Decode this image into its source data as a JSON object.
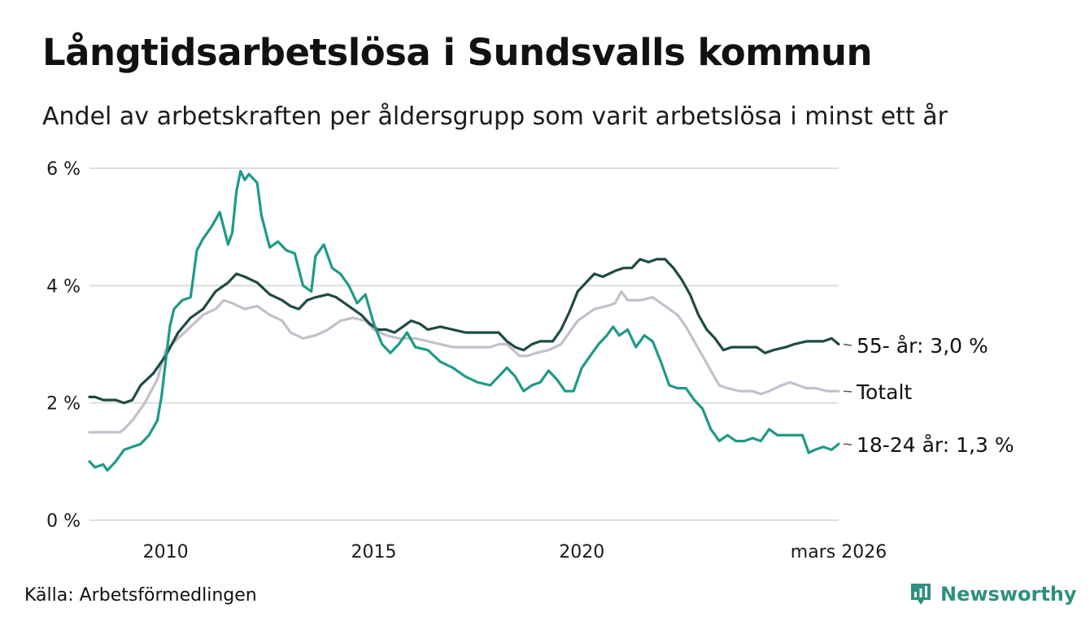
{
  "header": {
    "title": "Långtidsarbetslösa i Sundsvalls kommun",
    "subtitle": "Andel av arbetskraften per åldersgrupp som varit arbetslösa i minst ett år"
  },
  "footer": {
    "source": "Källa: Arbetsförmedlingen",
    "brand": "Newsworthy"
  },
  "colors": {
    "age55": "#1f4a44",
    "total": "#c3bfcc",
    "age1824": "#1e9a87",
    "grid": "#dcdcdc",
    "brand": "#2f8f7f"
  },
  "chart_data": {
    "type": "line",
    "title": "Långtidsarbetslösa i Sundsvalls kommun",
    "xlabel": "",
    "ylabel": "",
    "xlim": [
      2008.17,
      2026.17
    ],
    "ylim": [
      0,
      6
    ],
    "y_ticks": [
      0,
      2,
      4,
      6
    ],
    "y_tick_labels": [
      "0 %",
      "2 %",
      "4 %",
      "6 %"
    ],
    "x_ticks": [
      2010,
      2015,
      2020,
      2026.17
    ],
    "x_tick_labels": [
      "2010",
      "2015",
      "2020",
      "mars 2026"
    ],
    "grid": true,
    "series": [
      {
        "name": "Totalt",
        "end_label": "Totalt",
        "color_key": "total",
        "points": [
          [
            2008.17,
            1.5
          ],
          [
            2008.5,
            1.5
          ],
          [
            2008.9,
            1.5
          ],
          [
            2009.0,
            1.55
          ],
          [
            2009.2,
            1.7
          ],
          [
            2009.5,
            2.0
          ],
          [
            2009.8,
            2.4
          ],
          [
            2010.0,
            2.9
          ],
          [
            2010.3,
            3.1
          ],
          [
            2010.6,
            3.3
          ],
          [
            2010.9,
            3.5
          ],
          [
            2011.2,
            3.6
          ],
          [
            2011.4,
            3.75
          ],
          [
            2011.6,
            3.7
          ],
          [
            2011.9,
            3.6
          ],
          [
            2012.2,
            3.65
          ],
          [
            2012.5,
            3.5
          ],
          [
            2012.8,
            3.4
          ],
          [
            2013.0,
            3.2
          ],
          [
            2013.3,
            3.1
          ],
          [
            2013.6,
            3.15
          ],
          [
            2013.9,
            3.25
          ],
          [
            2014.2,
            3.4
          ],
          [
            2014.5,
            3.45
          ],
          [
            2014.8,
            3.4
          ],
          [
            2015.0,
            3.25
          ],
          [
            2015.3,
            3.15
          ],
          [
            2015.6,
            3.1
          ],
          [
            2016.0,
            3.1
          ],
          [
            2016.3,
            3.05
          ],
          [
            2016.6,
            3.0
          ],
          [
            2016.9,
            2.95
          ],
          [
            2017.2,
            2.95
          ],
          [
            2017.5,
            2.95
          ],
          [
            2017.8,
            2.95
          ],
          [
            2018.0,
            3.0
          ],
          [
            2018.2,
            3.0
          ],
          [
            2018.5,
            2.8
          ],
          [
            2018.7,
            2.8
          ],
          [
            2018.9,
            2.85
          ],
          [
            2019.2,
            2.9
          ],
          [
            2019.5,
            3.0
          ],
          [
            2019.7,
            3.2
          ],
          [
            2019.9,
            3.4
          ],
          [
            2020.1,
            3.5
          ],
          [
            2020.3,
            3.6
          ],
          [
            2020.6,
            3.65
          ],
          [
            2020.8,
            3.7
          ],
          [
            2020.95,
            3.9
          ],
          [
            2021.1,
            3.75
          ],
          [
            2021.4,
            3.75
          ],
          [
            2021.7,
            3.8
          ],
          [
            2022.0,
            3.65
          ],
          [
            2022.3,
            3.5
          ],
          [
            2022.5,
            3.3
          ],
          [
            2022.7,
            3.05
          ],
          [
            2022.9,
            2.8
          ],
          [
            2023.1,
            2.55
          ],
          [
            2023.3,
            2.3
          ],
          [
            2023.5,
            2.25
          ],
          [
            2023.8,
            2.2
          ],
          [
            2024.1,
            2.2
          ],
          [
            2024.3,
            2.15
          ],
          [
            2024.5,
            2.2
          ],
          [
            2024.8,
            2.3
          ],
          [
            2025.0,
            2.35
          ],
          [
            2025.2,
            2.3
          ],
          [
            2025.4,
            2.25
          ],
          [
            2025.6,
            2.25
          ],
          [
            2025.9,
            2.2
          ],
          [
            2026.17,
            2.2
          ]
        ]
      },
      {
        "name": "55- år",
        "end_label": "55- år: 3,0 %",
        "color_key": "age55",
        "points": [
          [
            2008.17,
            2.1
          ],
          [
            2008.3,
            2.1
          ],
          [
            2008.5,
            2.05
          ],
          [
            2008.8,
            2.05
          ],
          [
            2009.0,
            2.0
          ],
          [
            2009.2,
            2.05
          ],
          [
            2009.4,
            2.3
          ],
          [
            2009.7,
            2.5
          ],
          [
            2010.0,
            2.8
          ],
          [
            2010.3,
            3.2
          ],
          [
            2010.6,
            3.45
          ],
          [
            2010.9,
            3.6
          ],
          [
            2011.2,
            3.9
          ],
          [
            2011.5,
            4.05
          ],
          [
            2011.7,
            4.2
          ],
          [
            2011.9,
            4.15
          ],
          [
            2012.2,
            4.05
          ],
          [
            2012.5,
            3.85
          ],
          [
            2012.8,
            3.75
          ],
          [
            2013.0,
            3.65
          ],
          [
            2013.2,
            3.6
          ],
          [
            2013.4,
            3.75
          ],
          [
            2013.6,
            3.8
          ],
          [
            2013.9,
            3.85
          ],
          [
            2014.1,
            3.8
          ],
          [
            2014.3,
            3.7
          ],
          [
            2014.5,
            3.6
          ],
          [
            2014.7,
            3.5
          ],
          [
            2014.9,
            3.35
          ],
          [
            2015.1,
            3.25
          ],
          [
            2015.3,
            3.25
          ],
          [
            2015.5,
            3.2
          ],
          [
            2015.7,
            3.3
          ],
          [
            2015.9,
            3.4
          ],
          [
            2016.1,
            3.35
          ],
          [
            2016.3,
            3.25
          ],
          [
            2016.6,
            3.3
          ],
          [
            2016.9,
            3.25
          ],
          [
            2017.2,
            3.2
          ],
          [
            2017.5,
            3.2
          ],
          [
            2017.8,
            3.2
          ],
          [
            2018.0,
            3.2
          ],
          [
            2018.2,
            3.05
          ],
          [
            2018.4,
            2.95
          ],
          [
            2018.6,
            2.9
          ],
          [
            2018.8,
            3.0
          ],
          [
            2019.0,
            3.05
          ],
          [
            2019.3,
            3.05
          ],
          [
            2019.5,
            3.25
          ],
          [
            2019.7,
            3.55
          ],
          [
            2019.9,
            3.9
          ],
          [
            2020.1,
            4.05
          ],
          [
            2020.3,
            4.2
          ],
          [
            2020.5,
            4.15
          ],
          [
            2020.8,
            4.25
          ],
          [
            2021.0,
            4.3
          ],
          [
            2021.2,
            4.3
          ],
          [
            2021.4,
            4.45
          ],
          [
            2021.6,
            4.4
          ],
          [
            2021.8,
            4.45
          ],
          [
            2022.0,
            4.45
          ],
          [
            2022.2,
            4.3
          ],
          [
            2022.4,
            4.1
          ],
          [
            2022.6,
            3.85
          ],
          [
            2022.8,
            3.5
          ],
          [
            2023.0,
            3.25
          ],
          [
            2023.2,
            3.1
          ],
          [
            2023.4,
            2.9
          ],
          [
            2023.6,
            2.95
          ],
          [
            2023.9,
            2.95
          ],
          [
            2024.2,
            2.95
          ],
          [
            2024.4,
            2.85
          ],
          [
            2024.6,
            2.9
          ],
          [
            2024.9,
            2.95
          ],
          [
            2025.1,
            3.0
          ],
          [
            2025.4,
            3.05
          ],
          [
            2025.6,
            3.05
          ],
          [
            2025.8,
            3.05
          ],
          [
            2026.0,
            3.1
          ],
          [
            2026.17,
            3.0
          ]
        ]
      },
      {
        "name": "18-24 år",
        "end_label": "18-24 år: 1,3 %",
        "color_key": "age1824",
        "points": [
          [
            2008.17,
            1.0
          ],
          [
            2008.3,
            0.9
          ],
          [
            2008.5,
            0.95
          ],
          [
            2008.6,
            0.85
          ],
          [
            2008.8,
            1.0
          ],
          [
            2009.0,
            1.2
          ],
          [
            2009.2,
            1.25
          ],
          [
            2009.4,
            1.3
          ],
          [
            2009.6,
            1.45
          ],
          [
            2009.8,
            1.7
          ],
          [
            2009.9,
            2.1
          ],
          [
            2010.0,
            2.7
          ],
          [
            2010.1,
            3.3
          ],
          [
            2010.2,
            3.6
          ],
          [
            2010.4,
            3.75
          ],
          [
            2010.6,
            3.8
          ],
          [
            2010.75,
            4.6
          ],
          [
            2010.9,
            4.8
          ],
          [
            2011.1,
            5.0
          ],
          [
            2011.3,
            5.25
          ],
          [
            2011.5,
            4.7
          ],
          [
            2011.6,
            4.9
          ],
          [
            2011.7,
            5.6
          ],
          [
            2011.8,
            5.95
          ],
          [
            2011.9,
            5.8
          ],
          [
            2012.0,
            5.9
          ],
          [
            2012.2,
            5.75
          ],
          [
            2012.3,
            5.2
          ],
          [
            2012.5,
            4.65
          ],
          [
            2012.7,
            4.75
          ],
          [
            2012.9,
            4.6
          ],
          [
            2013.1,
            4.55
          ],
          [
            2013.3,
            4.0
          ],
          [
            2013.5,
            3.9
          ],
          [
            2013.6,
            4.5
          ],
          [
            2013.8,
            4.7
          ],
          [
            2014.0,
            4.3
          ],
          [
            2014.2,
            4.2
          ],
          [
            2014.4,
            4.0
          ],
          [
            2014.6,
            3.7
          ],
          [
            2014.8,
            3.85
          ],
          [
            2015.0,
            3.35
          ],
          [
            2015.2,
            3.0
          ],
          [
            2015.4,
            2.85
          ],
          [
            2015.6,
            3.0
          ],
          [
            2015.8,
            3.2
          ],
          [
            2016.0,
            2.95
          ],
          [
            2016.3,
            2.9
          ],
          [
            2016.6,
            2.7
          ],
          [
            2016.9,
            2.6
          ],
          [
            2017.2,
            2.45
          ],
          [
            2017.5,
            2.35
          ],
          [
            2017.8,
            2.3
          ],
          [
            2018.0,
            2.45
          ],
          [
            2018.2,
            2.6
          ],
          [
            2018.4,
            2.45
          ],
          [
            2018.6,
            2.2
          ],
          [
            2018.8,
            2.3
          ],
          [
            2019.0,
            2.35
          ],
          [
            2019.2,
            2.55
          ],
          [
            2019.4,
            2.4
          ],
          [
            2019.6,
            2.2
          ],
          [
            2019.8,
            2.2
          ],
          [
            2020.0,
            2.6
          ],
          [
            2020.2,
            2.8
          ],
          [
            2020.4,
            3.0
          ],
          [
            2020.6,
            3.15
          ],
          [
            2020.75,
            3.3
          ],
          [
            2020.9,
            3.15
          ],
          [
            2021.1,
            3.25
          ],
          [
            2021.3,
            2.95
          ],
          [
            2021.5,
            3.15
          ],
          [
            2021.7,
            3.05
          ],
          [
            2021.9,
            2.7
          ],
          [
            2022.1,
            2.3
          ],
          [
            2022.3,
            2.25
          ],
          [
            2022.5,
            2.25
          ],
          [
            2022.7,
            2.05
          ],
          [
            2022.9,
            1.9
          ],
          [
            2023.1,
            1.55
          ],
          [
            2023.3,
            1.35
          ],
          [
            2023.5,
            1.45
          ],
          [
            2023.7,
            1.35
          ],
          [
            2023.9,
            1.35
          ],
          [
            2024.1,
            1.4
          ],
          [
            2024.3,
            1.35
          ],
          [
            2024.5,
            1.55
          ],
          [
            2024.7,
            1.45
          ],
          [
            2024.9,
            1.45
          ],
          [
            2025.1,
            1.45
          ],
          [
            2025.3,
            1.45
          ],
          [
            2025.45,
            1.15
          ],
          [
            2025.6,
            1.2
          ],
          [
            2025.8,
            1.25
          ],
          [
            2026.0,
            1.2
          ],
          [
            2026.17,
            1.3
          ]
        ]
      }
    ]
  }
}
